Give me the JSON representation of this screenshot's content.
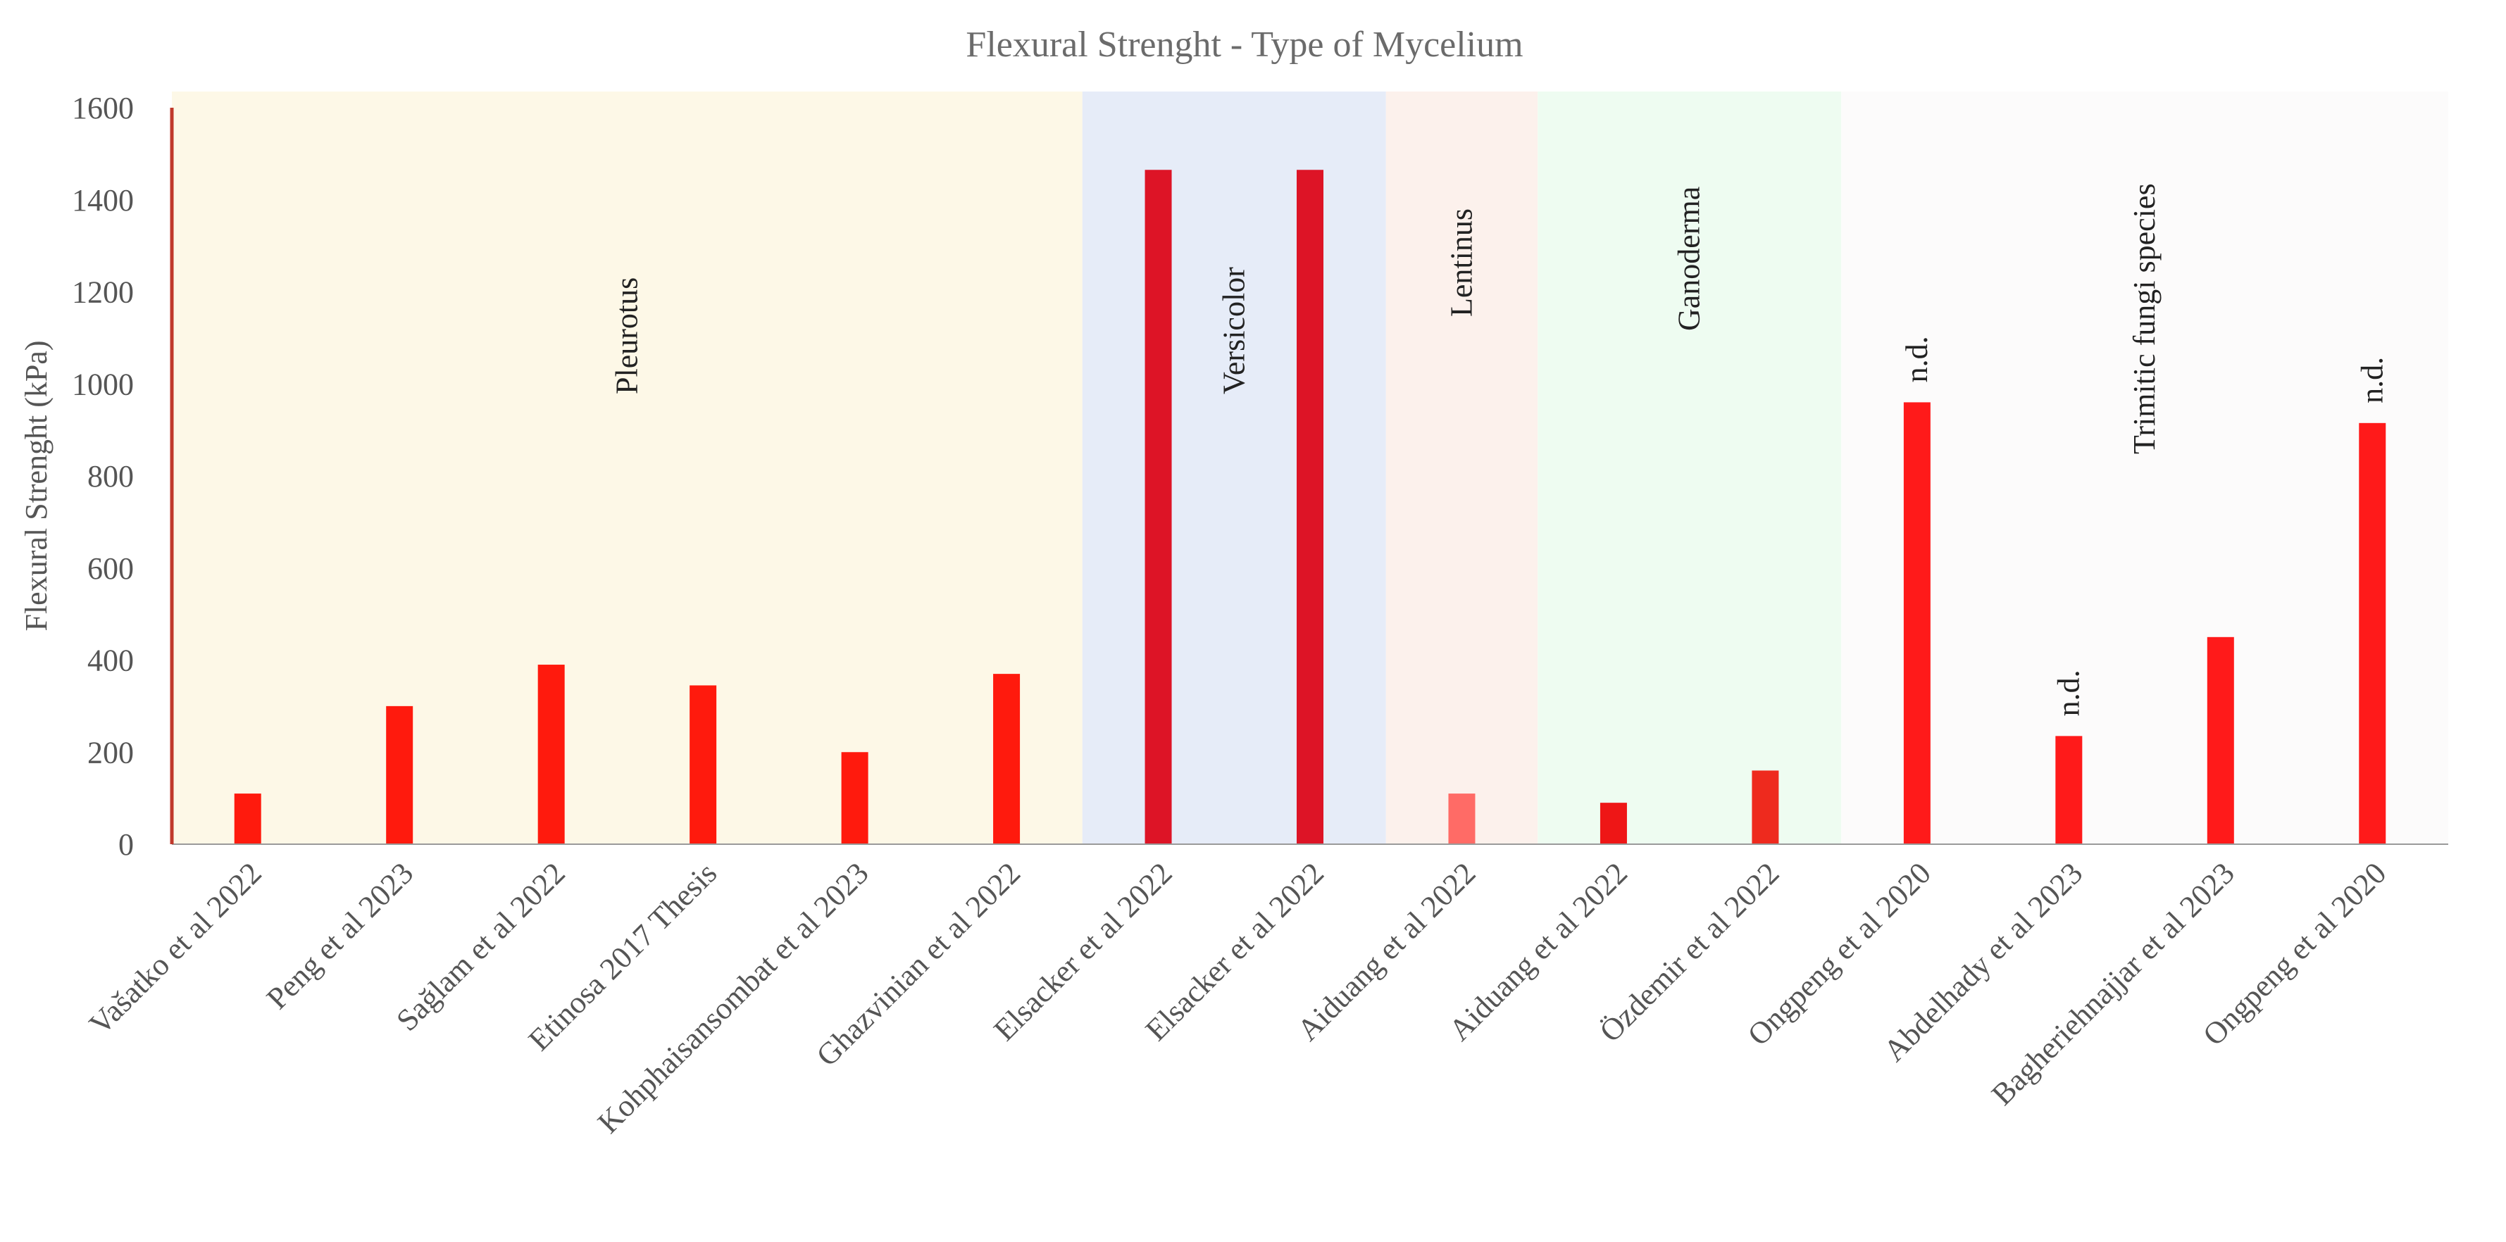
{
  "chart_data": {
    "type": "bar",
    "title": "Flexural  Strenght - Type of Mycelium",
    "xlabel": "",
    "ylabel": "Flexural  Strenght (kPa)",
    "ylim": [
      0,
      1600
    ],
    "yticks": [
      "0",
      "200",
      "400",
      "600",
      "800",
      "1000",
      "1200",
      "1400",
      "1600"
    ],
    "grid": false,
    "categories": [
      "Vašatko et al 2022",
      "Peng et al 2023",
      "Sağlam et al  2022",
      "Etinosa 2017 Thesis",
      "Kohphaisansombat et al 2023",
      "Ghazvinian et al 2022",
      "Elsacker et al 2022",
      "Elsacker et al 2022",
      "Aiduang et al  2022",
      "Aiduang et al  2022",
      "Özdemir et al  2022",
      "Ongpeng  et al 2020",
      "Abdelhady et al 2023",
      "Bagheriehnajjar et al 2023",
      "Ongpeng  et al 2020"
    ],
    "values": [
      110,
      300,
      390,
      345,
      200,
      370,
      1465,
      1465,
      110,
      90,
      160,
      960,
      235,
      450,
      915
    ],
    "bar_colors": [
      "#ff1a0d",
      "#ff1a0d",
      "#ff1a0d",
      "#ff1a0d",
      "#ff1a0d",
      "#ff1a0d",
      "#dd1426",
      "#dd1426",
      "#ff6b66",
      "#ee1616",
      "#ee2a1e",
      "#ff1a1a",
      "#ff1a1a",
      "#ff1a1a",
      "#ff1a1a"
    ],
    "bar_labels": [
      "",
      "",
      "",
      "",
      "",
      "",
      "",
      "",
      "",
      "",
      "",
      "n.d.",
      "n.d.",
      "",
      "n.d."
    ],
    "groups": [
      {
        "label": "Pleurotus",
        "start": 0,
        "end": 5,
        "color": "#fdf8e7"
      },
      {
        "label": "Versicolor",
        "start": 6,
        "end": 7,
        "color": "#e6ecf8"
      },
      {
        "label": "Lentinus",
        "start": 8,
        "end": 8,
        "color": "#fcf1ec"
      },
      {
        "label": "Ganoderma",
        "start": 9,
        "end": 10,
        "color": "#eefcf1"
      },
      {
        "label": "Trimitic fungi species",
        "start": 11,
        "end": 14,
        "color": "#fcfbfb"
      }
    ],
    "axis_color": "#c0392b"
  }
}
